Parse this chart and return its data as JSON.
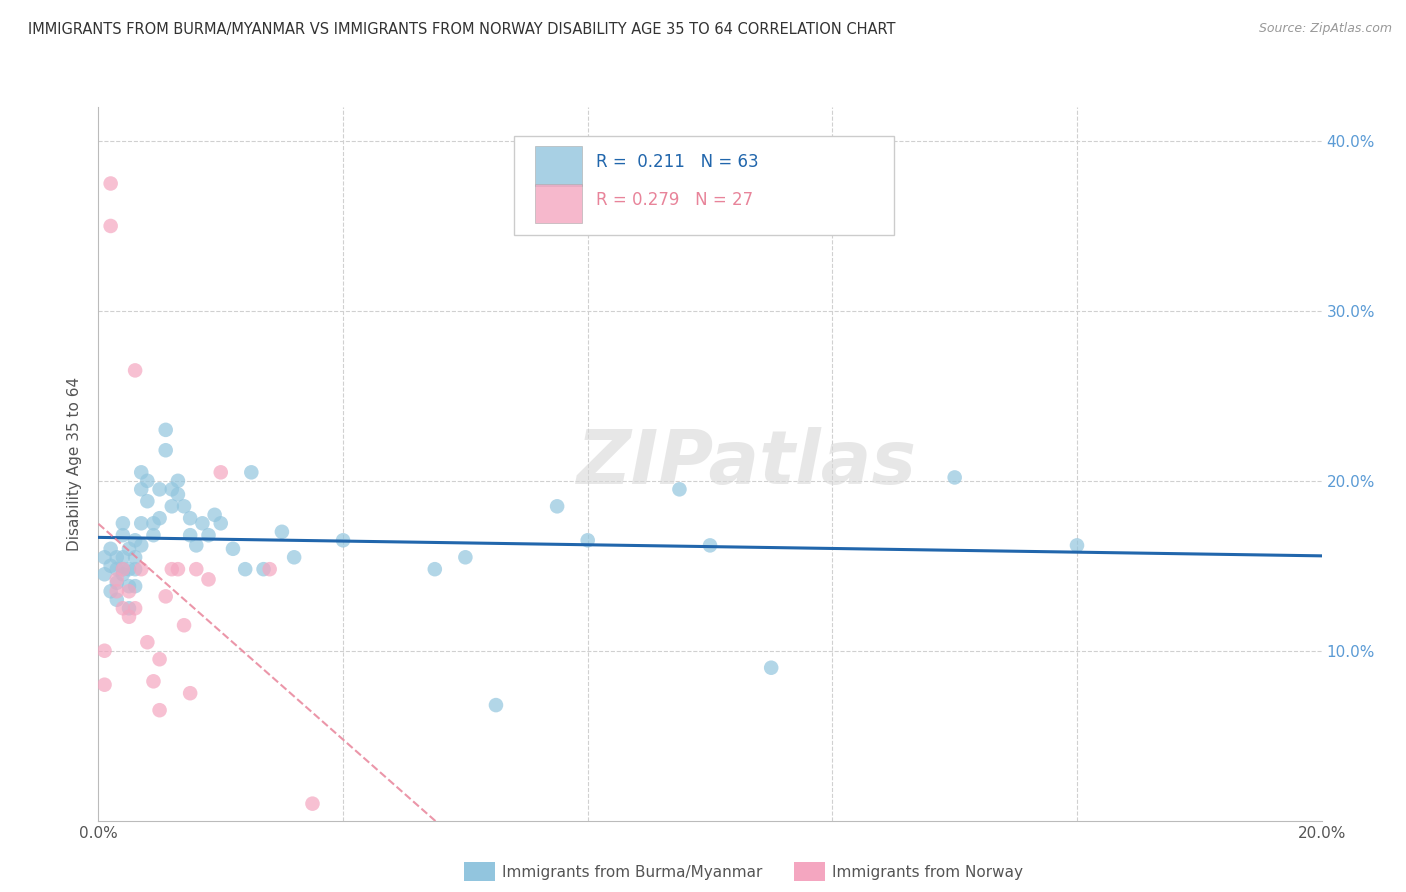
{
  "title": "IMMIGRANTS FROM BURMA/MYANMAR VS IMMIGRANTS FROM NORWAY DISABILITY AGE 35 TO 64 CORRELATION CHART",
  "source": "Source: ZipAtlas.com",
  "ylabel": "Disability Age 35 to 64",
  "xlim": [
    0.0,
    0.2
  ],
  "ylim": [
    0.0,
    0.42
  ],
  "r_burma": 0.211,
  "n_burma": 63,
  "r_norway": 0.279,
  "n_norway": 27,
  "burma_color": "#92c5de",
  "norway_color": "#f4a6c0",
  "burma_trend_color": "#2166ac",
  "norway_trend_color": "#e8849a",
  "watermark": "ZIPatlas",
  "legend_labels": [
    "Immigrants from Burma/Myanmar",
    "Immigrants from Norway"
  ],
  "burma_x": [
    0.001,
    0.001,
    0.002,
    0.002,
    0.002,
    0.003,
    0.003,
    0.003,
    0.003,
    0.004,
    0.004,
    0.004,
    0.004,
    0.004,
    0.005,
    0.005,
    0.005,
    0.005,
    0.006,
    0.006,
    0.006,
    0.006,
    0.007,
    0.007,
    0.007,
    0.007,
    0.008,
    0.008,
    0.009,
    0.009,
    0.01,
    0.01,
    0.011,
    0.011,
    0.012,
    0.012,
    0.013,
    0.013,
    0.014,
    0.015,
    0.015,
    0.016,
    0.017,
    0.018,
    0.019,
    0.02,
    0.022,
    0.024,
    0.025,
    0.027,
    0.03,
    0.032,
    0.04,
    0.055,
    0.06,
    0.065,
    0.075,
    0.08,
    0.095,
    0.1,
    0.11,
    0.14,
    0.16
  ],
  "burma_y": [
    0.155,
    0.145,
    0.15,
    0.16,
    0.135,
    0.155,
    0.148,
    0.14,
    0.13,
    0.155,
    0.148,
    0.168,
    0.175,
    0.145,
    0.16,
    0.148,
    0.138,
    0.125,
    0.165,
    0.155,
    0.148,
    0.138,
    0.205,
    0.195,
    0.175,
    0.162,
    0.2,
    0.188,
    0.175,
    0.168,
    0.195,
    0.178,
    0.23,
    0.218,
    0.195,
    0.185,
    0.2,
    0.192,
    0.185,
    0.178,
    0.168,
    0.162,
    0.175,
    0.168,
    0.18,
    0.175,
    0.16,
    0.148,
    0.205,
    0.148,
    0.17,
    0.155,
    0.165,
    0.148,
    0.155,
    0.068,
    0.185,
    0.165,
    0.195,
    0.162,
    0.09,
    0.202,
    0.162
  ],
  "norway_x": [
    0.001,
    0.001,
    0.002,
    0.002,
    0.003,
    0.003,
    0.004,
    0.004,
    0.005,
    0.005,
    0.006,
    0.006,
    0.007,
    0.008,
    0.009,
    0.01,
    0.01,
    0.011,
    0.012,
    0.013,
    0.014,
    0.015,
    0.016,
    0.018,
    0.02,
    0.028,
    0.035
  ],
  "norway_y": [
    0.1,
    0.08,
    0.35,
    0.375,
    0.142,
    0.135,
    0.125,
    0.148,
    0.12,
    0.135,
    0.125,
    0.265,
    0.148,
    0.105,
    0.082,
    0.065,
    0.095,
    0.132,
    0.148,
    0.148,
    0.115,
    0.075,
    0.148,
    0.142,
    0.205,
    0.148,
    0.01
  ]
}
